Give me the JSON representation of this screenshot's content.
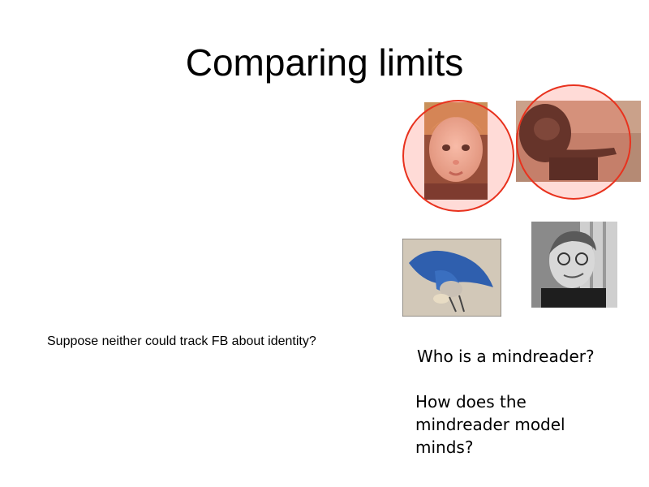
{
  "slide": {
    "title": "Comparing limits",
    "caption": "Suppose neither could track FB about identity?",
    "question_1": "Who is a mindreader?",
    "question_2": "How does the mindreader model minds?"
  },
  "highlight_color": "#e8321e",
  "images": [
    {
      "name": "infant-photo",
      "subject": "baby",
      "highlighted": true
    },
    {
      "name": "chimpanzee-photo",
      "subject": "chimpanzee",
      "highlighted": true
    },
    {
      "name": "scrub-jay-photo",
      "subject": "scrub jay",
      "highlighted": false
    },
    {
      "name": "adult-human-photo",
      "subject": "adult man",
      "highlighted": false
    }
  ]
}
